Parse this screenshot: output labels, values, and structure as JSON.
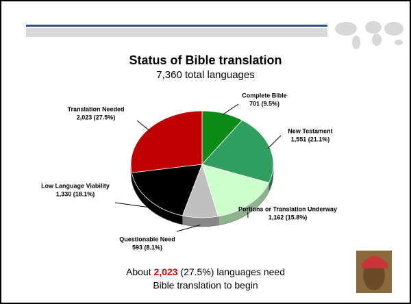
{
  "chart_data": {
    "type": "pie",
    "title": "Status of Bible translation",
    "subtitle": "7,360 total languages",
    "categories": [
      "Complete Bible",
      "New Testament",
      "Portions or Translation Underway",
      "Questionable Need",
      "Low Language Viability",
      "Translation Needed"
    ],
    "values": [
      701,
      1551,
      1162,
      593,
      1330,
      2023
    ],
    "value_labels": [
      "701 (9.5%)",
      "1,551 (21.1%)",
      "1,162 (15.8%)",
      "593 (8.1%)",
      "1,330 (18.1%)",
      "2,023 (27.5%)"
    ],
    "colors": [
      "#0b8a18",
      "#2f9e5f",
      "#ccffcc",
      "#c0c0c0",
      "#000000",
      "#c00000"
    ]
  },
  "footer": {
    "parts": [
      "About",
      "2,023",
      "(27.5%) languages need",
      "Bible translation to begin"
    ]
  }
}
